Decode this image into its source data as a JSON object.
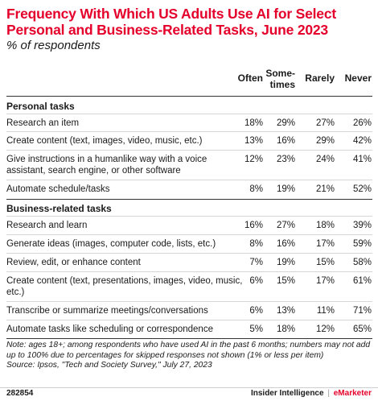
{
  "chart_data": {
    "type": "table",
    "title": "Frequency With Which US Adults Use AI for Select Personal and Business-Related Tasks, June 2023",
    "subtitle": "% of respondents",
    "columns": [
      "Often",
      "Some-times",
      "Rarely",
      "Never"
    ],
    "column_display": [
      "Often",
      "Some-\ntimes",
      "Rarely",
      "Never"
    ],
    "sections": [
      {
        "name": "Personal tasks",
        "rows": [
          {
            "label": "Research an item",
            "values": [
              "18%",
              "29%",
              "27%",
              "26%"
            ]
          },
          {
            "label": "Create content (text, images, video, music, etc.)",
            "values": [
              "13%",
              "16%",
              "29%",
              "42%"
            ]
          },
          {
            "label": "Give instructions in a humanlike way with a voice assistant, search engine, or other software",
            "values": [
              "12%",
              "23%",
              "24%",
              "41%"
            ]
          },
          {
            "label": "Automate schedule/tasks",
            "values": [
              "8%",
              "19%",
              "21%",
              "52%"
            ]
          }
        ]
      },
      {
        "name": "Business-related tasks",
        "rows": [
          {
            "label": "Research and learn",
            "values": [
              "16%",
              "27%",
              "18%",
              "39%"
            ]
          },
          {
            "label": "Generate ideas (images, computer code, lists, etc.)",
            "values": [
              "8%",
              "16%",
              "17%",
              "59%"
            ]
          },
          {
            "label": "Review, edit, or enhance content",
            "values": [
              "7%",
              "19%",
              "15%",
              "58%"
            ]
          },
          {
            "label": "Create content (text, presentations, images, video, music, etc.)",
            "values": [
              "6%",
              "15%",
              "17%",
              "61%"
            ]
          },
          {
            "label": "Transcribe or summarize meetings/conversations",
            "values": [
              "6%",
              "13%",
              "11%",
              "71%"
            ]
          },
          {
            "label": "Automate tasks like scheduling or correspondence",
            "values": [
              "5%",
              "18%",
              "12%",
              "65%"
            ]
          }
        ]
      }
    ],
    "note": "Note: ages 18+; among respondents who have used AI in the past 6 months; numbers may not add up to 100% due to percentages for skipped responses not shown (1% or less per item)",
    "source": "Source: Ipsos, \"Tech and Society Survey,\" July 27, 2023"
  },
  "footer": {
    "id": "282854",
    "brand_left": "Insider Intelligence",
    "brand_sep": "|",
    "brand_right": "eMarketer"
  },
  "colors": {
    "title": "#e4002b",
    "text": "#1a1a1a",
    "rule": "#333333"
  }
}
